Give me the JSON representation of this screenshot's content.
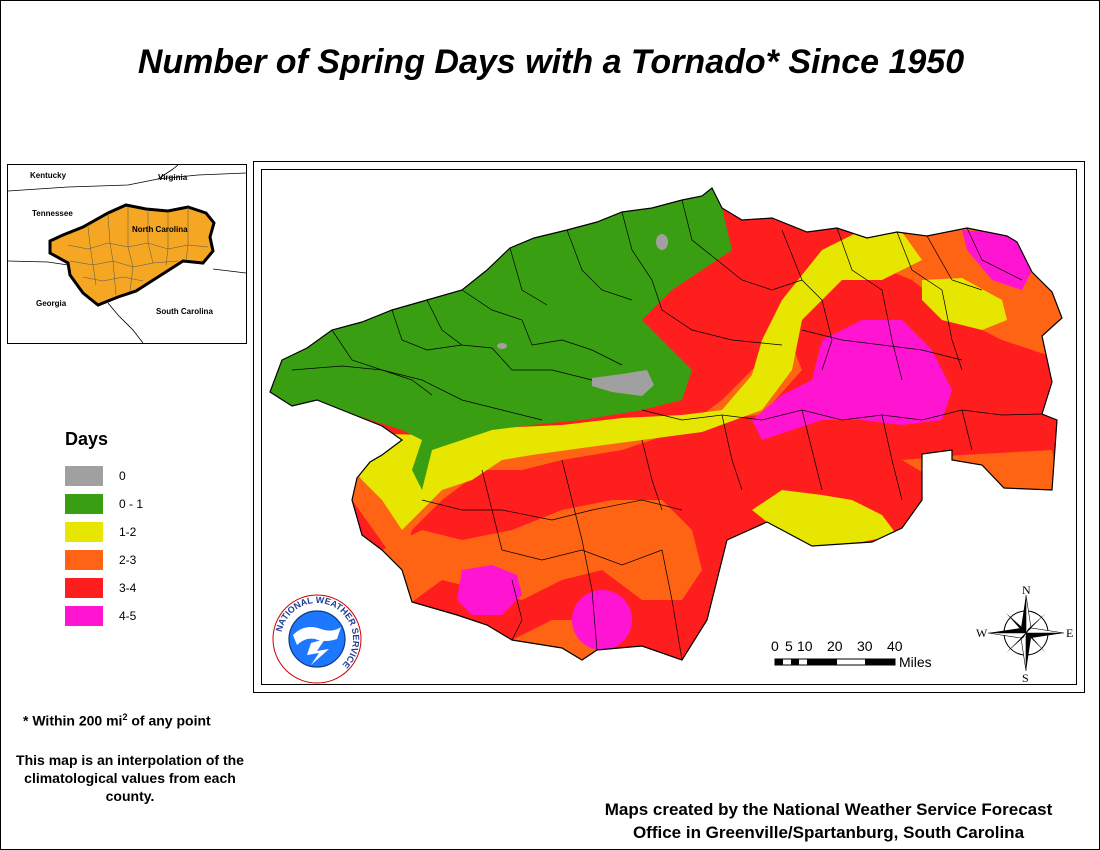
{
  "map": {
    "title": "Number of Spring Days with a Tornado* Since 1950",
    "inset": {
      "labels": {
        "kentucky": "Kentucky",
        "virginia": "Virginia",
        "tennessee": "Tennessee",
        "north_carolina": "North Carolina",
        "georgia": "Georgia",
        "south_carolina": "South Carolina"
      },
      "highlight_color": "#F5A623"
    },
    "legend": {
      "title": "Days",
      "items": [
        {
          "label": "0",
          "color": "#A0A0A0"
        },
        {
          "label": "0 - 1",
          "color": "#3A9E12"
        },
        {
          "label": "1-2",
          "color": "#E6E600"
        },
        {
          "label": "2-3",
          "color": "#FF6414"
        },
        {
          "label": "3-4",
          "color": "#FF1E1E"
        },
        {
          "label": "4-5",
          "color": "#FF14D2"
        }
      ]
    },
    "scale_bar": {
      "ticks": [
        "0",
        "5",
        "10",
        "20",
        "30",
        "40"
      ],
      "unit": "Miles"
    },
    "compass": {
      "n": "N",
      "s": "S",
      "e": "E",
      "w": "W"
    },
    "logo": {
      "text": "NATIONAL WEATHER SERVICE"
    },
    "notes": {
      "footnote_prefix": "* Within 200 mi",
      "footnote_sup": "2",
      "footnote_suffix": " of any point",
      "interpolation": "This map is an interpolation of the climatological values from each county."
    },
    "credit": {
      "line1": "Maps created by the National Weather Service Forecast",
      "line2": "Office in Greenville/Spartanburg, South Carolina"
    }
  }
}
